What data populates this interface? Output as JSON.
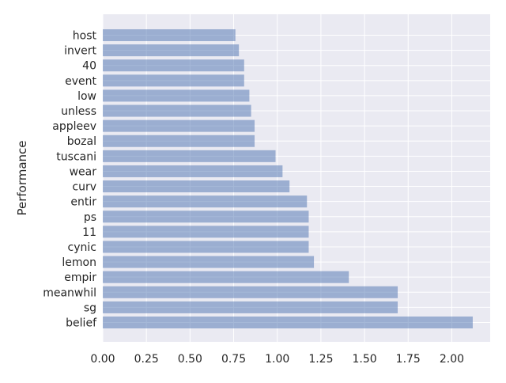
{
  "chart_data": {
    "type": "bar",
    "orientation": "horizontal",
    "title": "",
    "xlabel": "",
    "ylabel": "Performance",
    "categories": [
      "host",
      "invert",
      "40",
      "event",
      "low",
      "unless",
      "appleev",
      "bozal",
      "tuscani",
      "wear",
      "curv",
      "entir",
      "ps",
      "11",
      "cynic",
      "lemon",
      "empir",
      "meanwhil",
      "sg",
      "belief"
    ],
    "values": [
      0.76,
      0.78,
      0.81,
      0.81,
      0.84,
      0.85,
      0.87,
      0.87,
      0.99,
      1.03,
      1.07,
      1.17,
      1.18,
      1.18,
      1.18,
      1.21,
      1.41,
      1.69,
      1.69,
      2.12
    ],
    "xlim": [
      0,
      2.22
    ],
    "xticks": [
      "0.00",
      "0.25",
      "0.50",
      "0.75",
      "1.00",
      "1.25",
      "1.50",
      "1.75",
      "2.00"
    ],
    "grid": true,
    "bar_color": "#4c72b0",
    "bar_alpha": 0.5,
    "background_color": "#eaeaf2",
    "grid_color": "#ffffff"
  }
}
